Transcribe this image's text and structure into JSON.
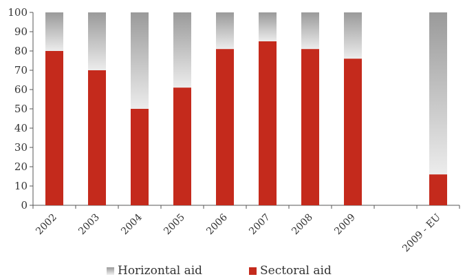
{
  "chart_data": {
    "type": "bar",
    "stacked": true,
    "categories": [
      "2002",
      "2003",
      "2004",
      "2005",
      "2006",
      "2007",
      "2008",
      "2009",
      "",
      "2009 - EU"
    ],
    "series": [
      {
        "name": "Sectoral aid",
        "values": [
          80,
          70,
          50,
          61,
          81,
          85,
          81,
          76,
          null,
          16
        ],
        "color": "#c42a1c"
      },
      {
        "name": "Horizontal aid",
        "values": [
          20,
          30,
          50,
          39,
          19,
          15,
          19,
          24,
          null,
          84
        ],
        "color": "#b0b0b0"
      }
    ],
    "y_ticks": [
      "0",
      "10",
      "20",
      "30",
      "40",
      "50",
      "60",
      "70",
      "80",
      "90",
      "100"
    ],
    "ylim": [
      0,
      100
    ],
    "grid": false,
    "legend_position": "bottom",
    "title": "",
    "xlabel": "",
    "ylabel": ""
  }
}
